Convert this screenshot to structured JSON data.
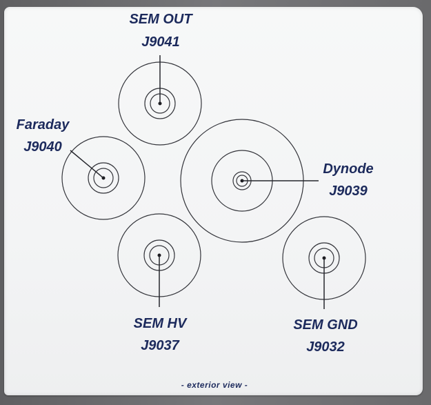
{
  "connectors": {
    "sem_out": {
      "name": "SEM OUT",
      "ref": "J9041"
    },
    "faraday": {
      "name": "Faraday",
      "ref": "J9040"
    },
    "dynode": {
      "name": "Dynode",
      "ref": "J9039"
    },
    "sem_hv": {
      "name": "SEM HV",
      "ref": "J9037"
    },
    "sem_gnd": {
      "name": "SEM GND",
      "ref": "J9032"
    }
  },
  "footer": "- exterior view -"
}
